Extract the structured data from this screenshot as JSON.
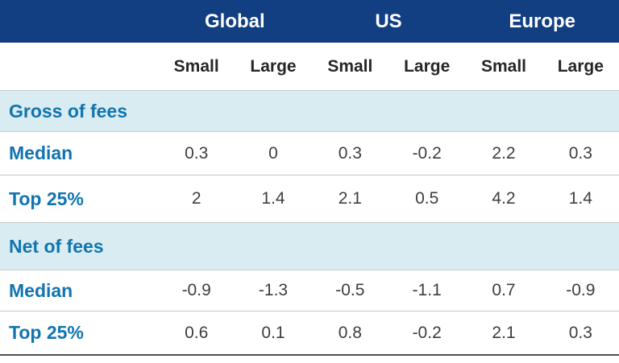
{
  "table": {
    "groups": [
      "Global",
      "US",
      "Europe"
    ],
    "subheaders": [
      "Small",
      "Large",
      "Small",
      "Large",
      "Small",
      "Large"
    ],
    "sections": [
      {
        "label": "Gross of fees",
        "rows": [
          {
            "label": "Median",
            "values": [
              "0.3",
              "0",
              "0.3",
              "-0.2",
              "2.2",
              "0.3"
            ]
          },
          {
            "label": "Top 25%",
            "values": [
              "2",
              "1.4",
              "2.1",
              "0.5",
              "4.2",
              "1.4"
            ]
          }
        ]
      },
      {
        "label": "Net of fees",
        "rows": [
          {
            "label": "Median",
            "values": [
              "-0.9",
              "-1.3",
              "-0.5",
              "-1.1",
              "0.7",
              "-0.9"
            ]
          },
          {
            "label": "Top 25%",
            "values": [
              "0.6",
              "0.1",
              "0.8",
              "-0.2",
              "2.1",
              "0.3"
            ]
          }
        ]
      }
    ],
    "colors": {
      "header_bg": "#123e82",
      "header_text": "#ffffff",
      "section_band_bg": "#d8ecf2",
      "accent_text": "#1174b0",
      "subheader_text": "#262626",
      "value_text": "#3d3d3d",
      "row_divider": "#c6c6c6",
      "bottom_rule": "#4d4d4d"
    }
  },
  "chart_data": {
    "type": "table",
    "column_groups": [
      "Global",
      "US",
      "Europe"
    ],
    "columns": [
      "Global Small",
      "Global Large",
      "US Small",
      "US Large",
      "Europe Small",
      "Europe Large"
    ],
    "sections": [
      {
        "label": "Gross of fees",
        "rows": [
          {
            "label": "Median",
            "values": [
              0.3,
              0,
              0.3,
              -0.2,
              2.2,
              0.3
            ]
          },
          {
            "label": "Top 25%",
            "values": [
              2,
              1.4,
              2.1,
              0.5,
              4.2,
              1.4
            ]
          }
        ]
      },
      {
        "label": "Net of fees",
        "rows": [
          {
            "label": "Median",
            "values": [
              -0.9,
              -1.3,
              -0.5,
              -1.1,
              0.7,
              -0.9
            ]
          },
          {
            "label": "Top 25%",
            "values": [
              0.6,
              0.1,
              0.8,
              -0.2,
              2.1,
              0.3
            ]
          }
        ]
      }
    ]
  }
}
